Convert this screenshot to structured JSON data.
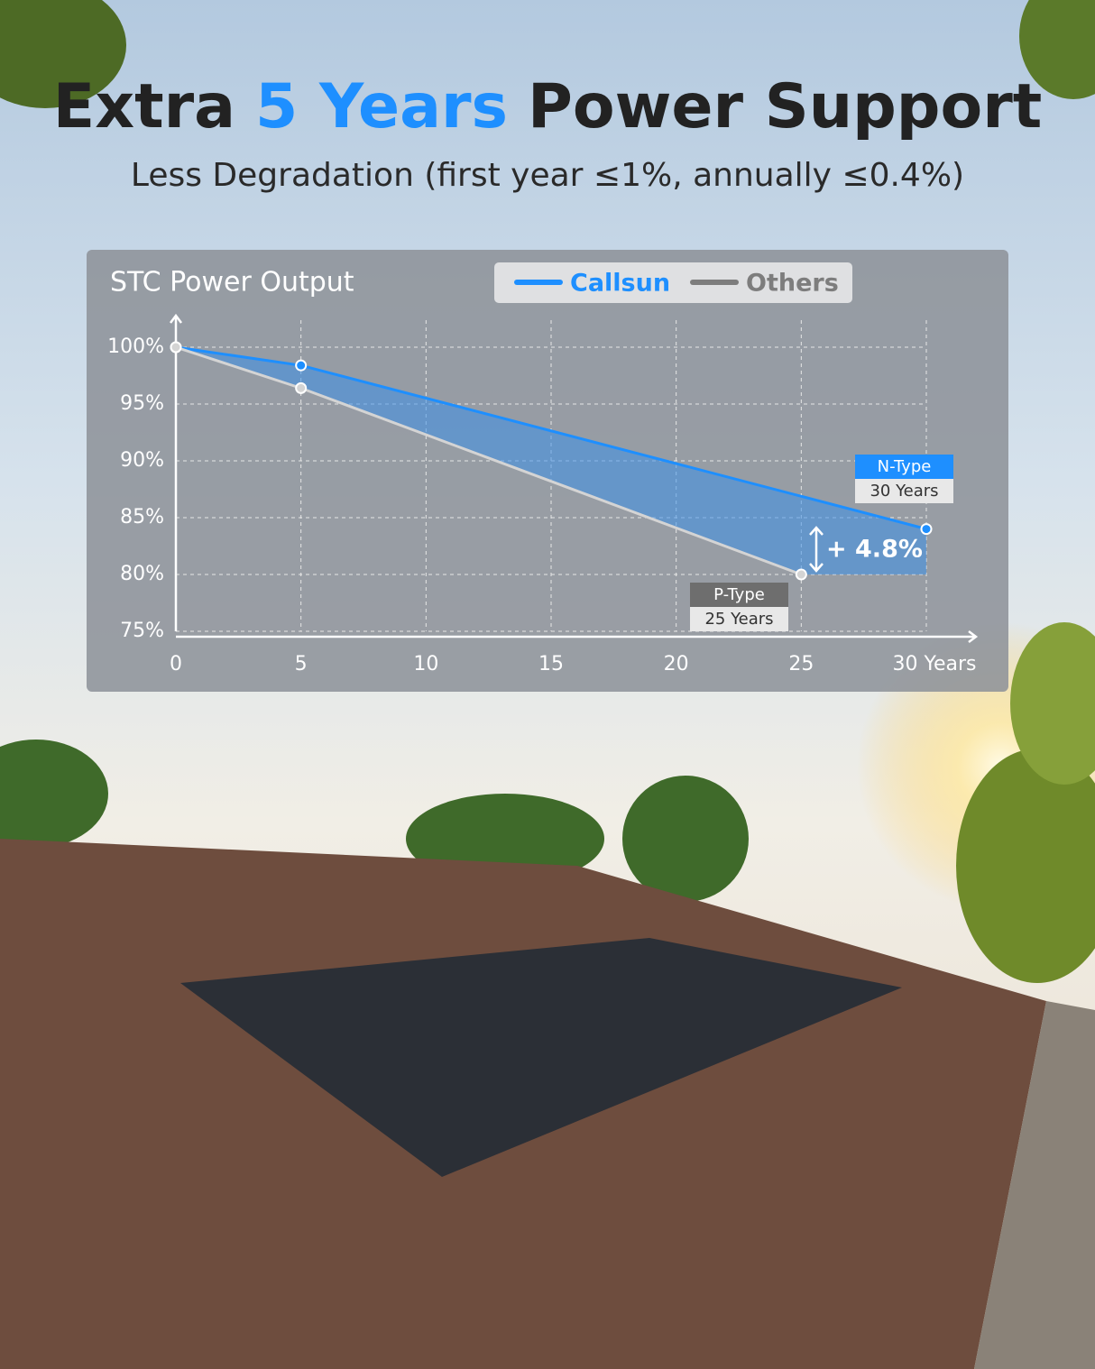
{
  "header": {
    "title_parts": [
      "Extra",
      "5 Years",
      "Power Support"
    ],
    "subtitle": "Less Degradation (first year ≤1%, annually ≤0.4%)"
  },
  "chart_data": {
    "type": "line",
    "title": "STC Power Output",
    "series": [
      {
        "name": "Callsun",
        "color": "#1e8fff",
        "x": [
          0,
          5,
          30
        ],
        "values": [
          100,
          98.4,
          84
        ]
      },
      {
        "name": "Others",
        "color": "#d4d4d4",
        "x": [
          0,
          5,
          25
        ],
        "values": [
          100,
          96.4,
          80
        ]
      }
    ],
    "xlim": [
      0,
      30
    ],
    "xticks": [
      0,
      5,
      10,
      15,
      20,
      25,
      {
        "value": 30,
        "label": "30 Years"
      }
    ],
    "ylim": [
      75,
      100
    ],
    "yticks": [
      {
        "value": 75,
        "label": "75%"
      },
      {
        "value": 80,
        "label": "80%"
      },
      {
        "value": 85,
        "label": "85%"
      },
      {
        "value": 90,
        "label": "90%"
      },
      {
        "value": 95,
        "label": "95%"
      },
      {
        "value": 100,
        "label": "100%"
      }
    ],
    "grid": true,
    "annotations": {
      "n_type": "N-Type",
      "n_years": "30 Years",
      "p_type": "P-Type",
      "p_years": "25 Years",
      "gain": "+ 4.8%"
    }
  }
}
